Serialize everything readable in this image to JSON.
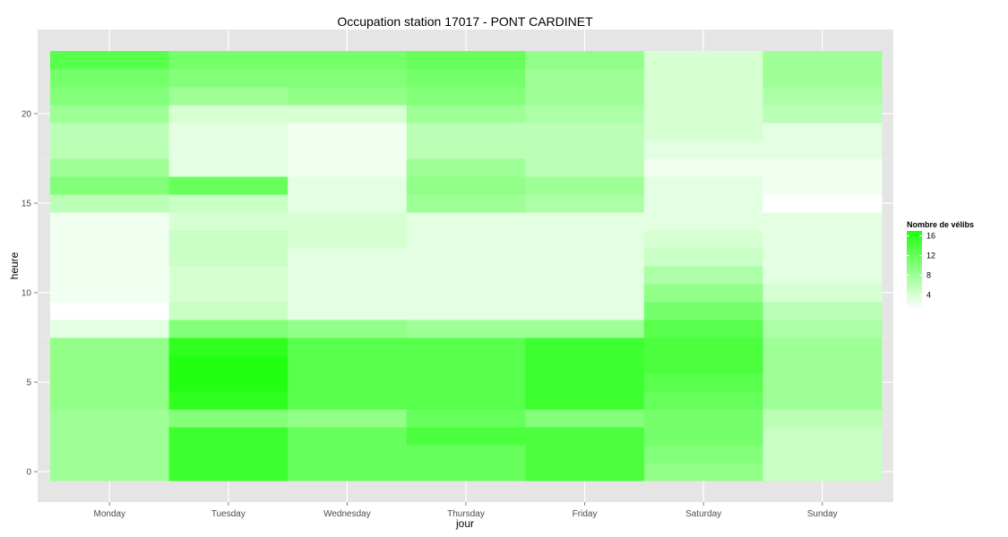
{
  "chart_data": {
    "type": "heatmap",
    "title": "Occupation station 17017 - PONT CARDINET",
    "xlabel": "jour",
    "ylabel": "heure",
    "x_categories": [
      "Monday",
      "Tuesday",
      "Wednesday",
      "Thursday",
      "Friday",
      "Saturday",
      "Sunday"
    ],
    "y_range": [
      -0.5,
      23.5
    ],
    "y_ticks": [
      0,
      5,
      10,
      15,
      20
    ],
    "hours": [
      0,
      1,
      2,
      3,
      4,
      5,
      6,
      7,
      8,
      9,
      10,
      11,
      12,
      13,
      14,
      15,
      16,
      17,
      18,
      19,
      20,
      21,
      22,
      23
    ],
    "legend": {
      "title": "Nombre de vélibs",
      "ticks": [
        4,
        8,
        12,
        16
      ],
      "min": 1,
      "max": 17,
      "color_low": "#ffffff",
      "color_high": "#22ff11"
    },
    "grid": true,
    "legend_position": "right",
    "values": [
      [
        8,
        15,
        12,
        12,
        14,
        9,
        5
      ],
      [
        8,
        15,
        12,
        12,
        14,
        10,
        5
      ],
      [
        8,
        15,
        12,
        14,
        14,
        11,
        5
      ],
      [
        8,
        10,
        9,
        12,
        10,
        11,
        6
      ],
      [
        9,
        16,
        13,
        13,
        15,
        12,
        8
      ],
      [
        9,
        17,
        13,
        13,
        15,
        13,
        8
      ],
      [
        9,
        17,
        13,
        13,
        15,
        14,
        8
      ],
      [
        9,
        16,
        13,
        13,
        15,
        14,
        8
      ],
      [
        3,
        10,
        9,
        8,
        8,
        13,
        7
      ],
      [
        1,
        5,
        3,
        3,
        3,
        11,
        6
      ],
      [
        2,
        4,
        3,
        3,
        3,
        9,
        4
      ],
      [
        2,
        4,
        3,
        3,
        3,
        7,
        3
      ],
      [
        2,
        5,
        3,
        3,
        3,
        5,
        3
      ],
      [
        2,
        5,
        4,
        3,
        3,
        4,
        3
      ],
      [
        2,
        4,
        4,
        3,
        3,
        3,
        3
      ],
      [
        6,
        5,
        3,
        8,
        7,
        3,
        1
      ],
      [
        10,
        12,
        3,
        9,
        8,
        3,
        2
      ],
      [
        8,
        3,
        2,
        8,
        6,
        2,
        2
      ],
      [
        6,
        3,
        2,
        6,
        6,
        3,
        3
      ],
      [
        6,
        3,
        2,
        6,
        6,
        4,
        3
      ],
      [
        8,
        4,
        4,
        8,
        7,
        4,
        6
      ],
      [
        10,
        8,
        9,
        10,
        8,
        4,
        7
      ],
      [
        11,
        10,
        10,
        11,
        8,
        4,
        8
      ],
      [
        13,
        11,
        11,
        12,
        9,
        4,
        8
      ]
    ]
  }
}
